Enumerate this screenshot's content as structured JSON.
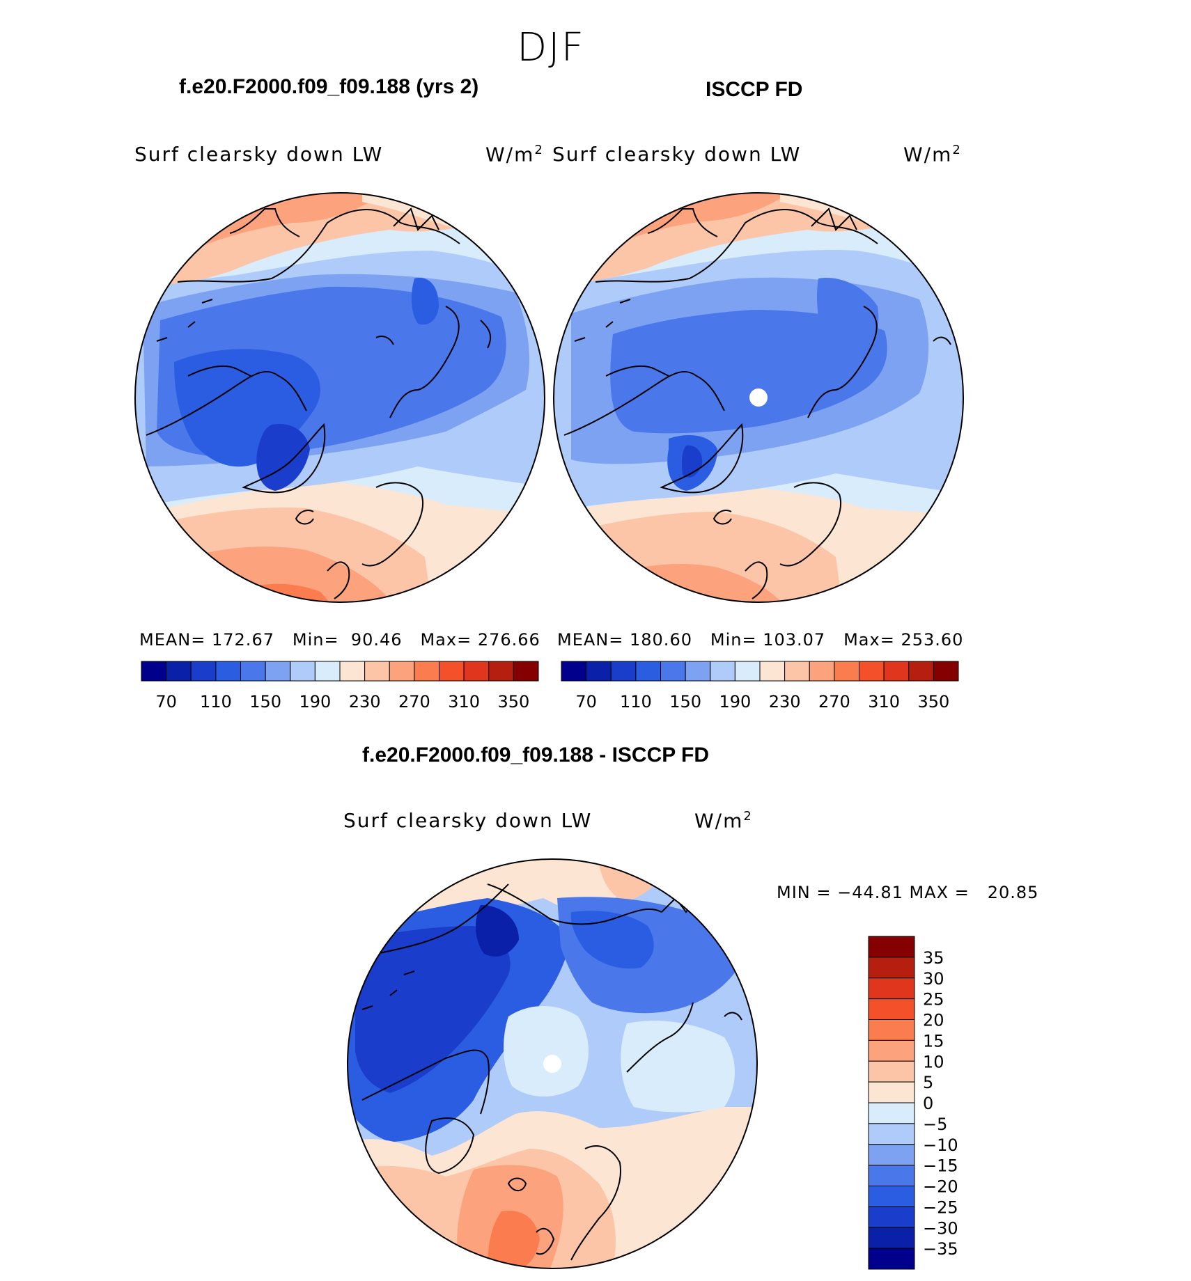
{
  "figure": {
    "title": "DJF",
    "left_panel": {
      "title": "f.e20.F2000.f09_f09.188 (yrs 2)",
      "variable": "Surf clearsky down LW",
      "units": "W/m",
      "units_exp": "2",
      "stats": {
        "mean_label": "MEAN=",
        "mean": "172.67",
        "min_label": "Min=",
        "min": "90.46",
        "max_label": "Max=",
        "max": "276.66"
      }
    },
    "right_panel": {
      "title": "ISCCP FD",
      "variable": "Surf clearsky down LW",
      "units": "W/m",
      "units_exp": "2",
      "stats": {
        "mean_label": "MEAN=",
        "mean": "180.60",
        "min_label": "Min=",
        "min": "103.07",
        "max_label": "Max=",
        "max": "253.60"
      }
    },
    "diff_panel": {
      "title": "f.e20.F2000.f09_f09.188 - ISCCP FD",
      "variable": "Surf clearsky down LW",
      "units": "W/m",
      "units_exp": "2",
      "min_max": "MIN = −44.81 MAX =   20.85"
    },
    "colorbar_top": {
      "ticks": [
        "70",
        "110",
        "150",
        "190",
        "230",
        "270",
        "310",
        "350"
      ],
      "colors": [
        "#00008c",
        "#0a20a8",
        "#1a3dcc",
        "#2b5de3",
        "#4a78ea",
        "#7da2f2",
        "#aecbf9",
        "#d8ecfb",
        "#fde5d4",
        "#fcc5a8",
        "#fca27d",
        "#fb7c4f",
        "#f4502a",
        "#e0361e",
        "#b61e10",
        "#850000"
      ]
    },
    "colorbar_diff": {
      "ticks": [
        "35",
        "30",
        "25",
        "20",
        "15",
        "10",
        "5",
        "0",
        "−5",
        "−10",
        "−15",
        "−20",
        "−25",
        "−30",
        "−35"
      ],
      "colors": [
        "#850000",
        "#b61e10",
        "#e0361e",
        "#f4502a",
        "#fb7c4f",
        "#fca27d",
        "#fcc5a8",
        "#fde5d4",
        "#d8ecfb",
        "#aecbf9",
        "#7da2f2",
        "#4a78ea",
        "#2b5de3",
        "#1a3dcc",
        "#0a20a8",
        "#00008c"
      ]
    }
  }
}
